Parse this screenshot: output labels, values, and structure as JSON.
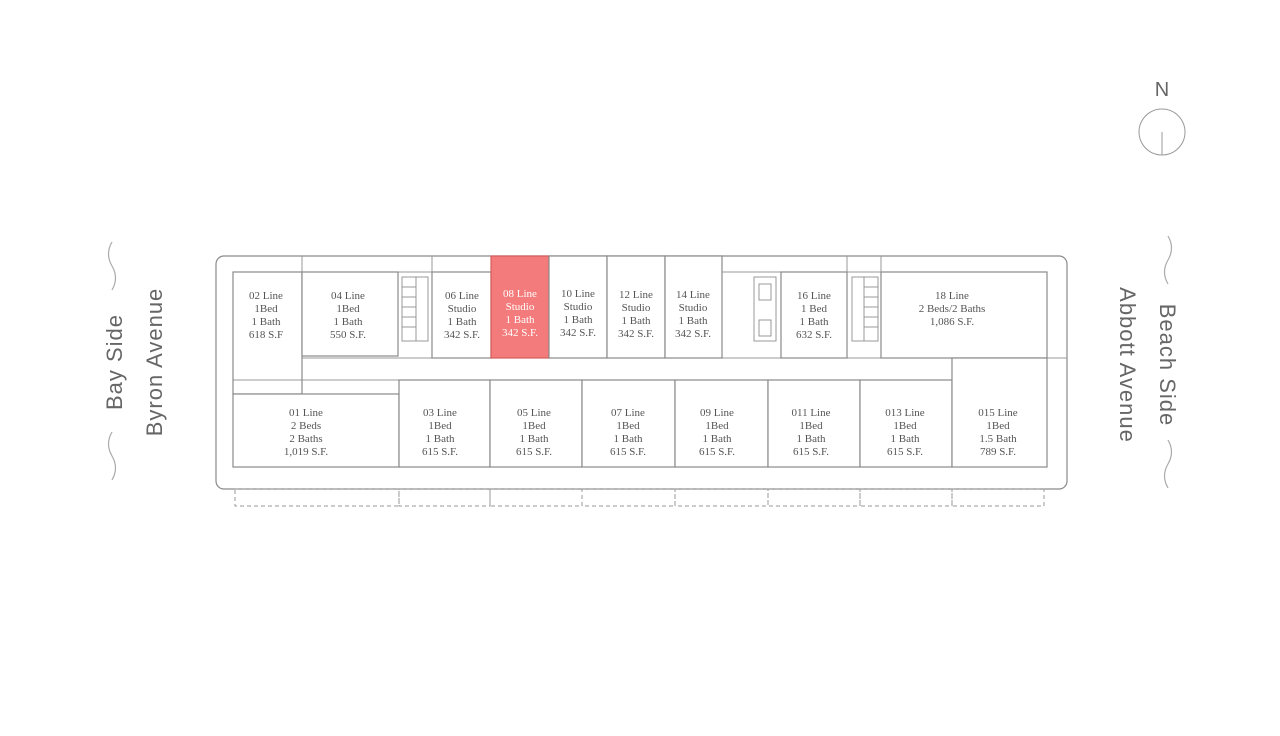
{
  "sides": {
    "left_side": "Bay Side",
    "left_avenue": "Byron Avenue",
    "right_side": "Beach Side",
    "right_avenue": "Abbott Avenue"
  },
  "compass": {
    "label": "N"
  },
  "highlight_color": "#f47b7b",
  "selected_unit": "08",
  "units": [
    {
      "id": "02",
      "lines": [
        "02 Line",
        "1Bed",
        "1 Bath",
        "618 S.F"
      ]
    },
    {
      "id": "04",
      "lines": [
        "04 Line",
        "1Bed",
        "1 Bath",
        "550 S.F."
      ]
    },
    {
      "id": "06",
      "lines": [
        "06 Line",
        "Studio",
        "1 Bath",
        "342 S.F."
      ]
    },
    {
      "id": "08",
      "lines": [
        "08 Line",
        "Studio",
        "1 Bath",
        "342 S.F."
      ]
    },
    {
      "id": "10",
      "lines": [
        "10 Line",
        "Studio",
        "1 Bath",
        "342 S.F."
      ]
    },
    {
      "id": "12",
      "lines": [
        "12 Line",
        "Studio",
        "1 Bath",
        "342 S.F."
      ]
    },
    {
      "id": "14",
      "lines": [
        "14 Line",
        "Studio",
        "1 Bath",
        "342 S.F."
      ]
    },
    {
      "id": "16",
      "lines": [
        "16 Line",
        "1 Bed",
        "1 Bath",
        "632 S.F."
      ]
    },
    {
      "id": "18",
      "lines": [
        "18 Line",
        "2 Beds/2 Baths",
        "1,086 S.F."
      ]
    },
    {
      "id": "01",
      "lines": [
        "01 Line",
        "2 Beds",
        "2 Baths",
        "1,019 S.F."
      ]
    },
    {
      "id": "03",
      "lines": [
        "03 Line",
        "1Bed",
        "1 Bath",
        "615 S.F."
      ]
    },
    {
      "id": "05",
      "lines": [
        "05 Line",
        "1Bed",
        "1 Bath",
        "615 S.F."
      ]
    },
    {
      "id": "07",
      "lines": [
        "07 Line",
        "1Bed",
        "1 Bath",
        "615 S.F."
      ]
    },
    {
      "id": "09",
      "lines": [
        "09 Line",
        "1Bed",
        "1 Bath",
        "615 S.F."
      ]
    },
    {
      "id": "011",
      "lines": [
        "011 Line",
        "1Bed",
        "1 Bath",
        "615 S.F."
      ]
    },
    {
      "id": "013",
      "lines": [
        "013 Line",
        "1Bed",
        "1 Bath",
        "615 S.F."
      ]
    },
    {
      "id": "015",
      "lines": [
        "015 Line",
        "1Bed",
        "1.5 Bath",
        "789 S.F."
      ]
    }
  ]
}
